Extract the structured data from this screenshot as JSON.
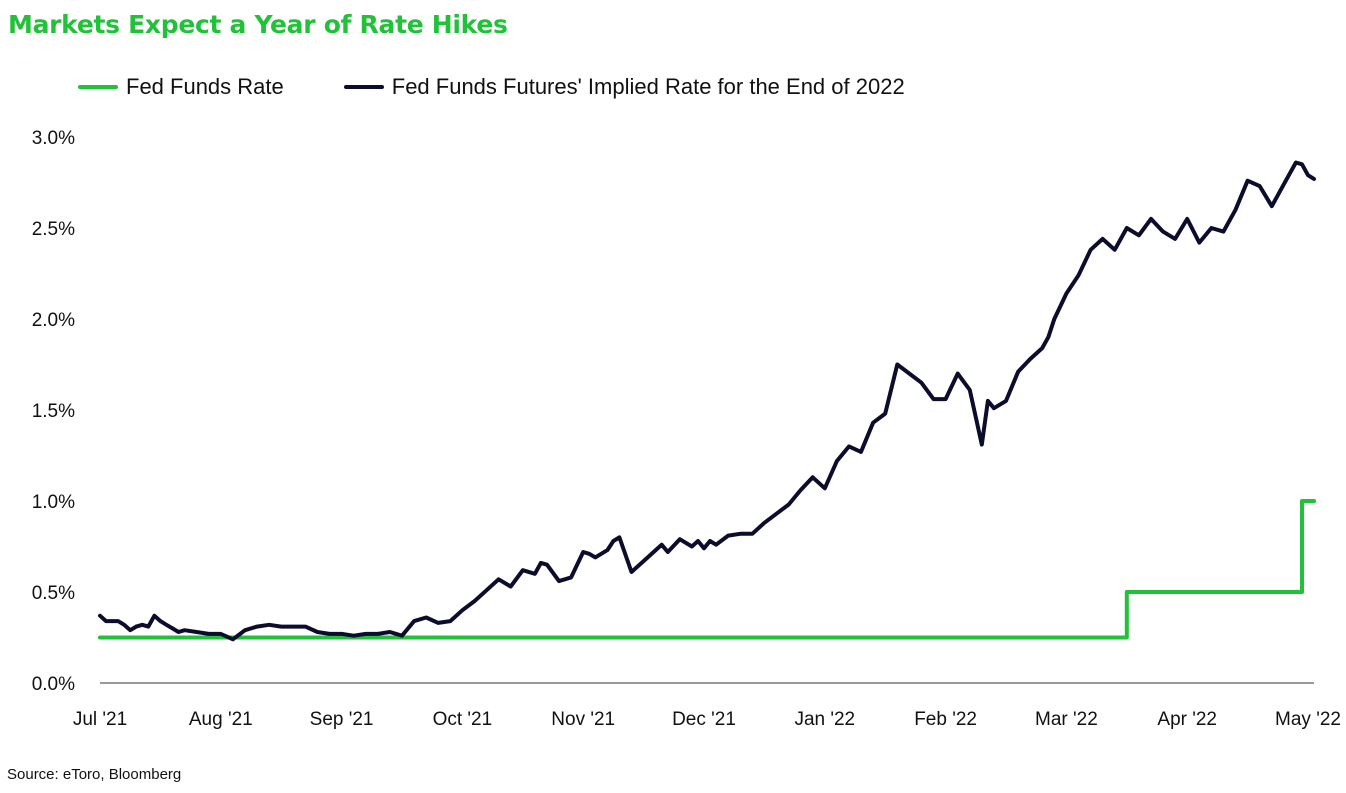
{
  "title": "Markets Expect a Year of Rate Hikes",
  "source": "Source: eToro, Bloomberg",
  "colors": {
    "title": "#22c13a",
    "fed_funds": "#22c13a",
    "futures": "#0c0c2c",
    "axis": "#333333"
  },
  "chart_data": {
    "type": "line",
    "title": "Markets Expect a Year of Rate Hikes",
    "xlabel": "",
    "ylabel": "",
    "ylim": [
      0,
      3.0
    ],
    "xlim": [
      0,
      10.15
    ],
    "x_unit": "months since Jul 1 2021",
    "grid": false,
    "legend_position": "top",
    "y_ticks": [
      "0.0%",
      "0.5%",
      "1.0%",
      "1.5%",
      "2.0%",
      "2.5%",
      "3.0%"
    ],
    "y_tick_values": [
      0,
      0.5,
      1.0,
      1.5,
      2.0,
      2.5,
      3.0
    ],
    "x_ticks": [
      "Jul '21",
      "Aug '21",
      "Sep '21",
      "Oct '21",
      "Nov '21",
      "Dec '21",
      "Jan '22",
      "Feb '22",
      "Mar '22",
      "Apr '22",
      "May '22"
    ],
    "x_tick_values": [
      0,
      1,
      2,
      3,
      4,
      5,
      6,
      7,
      8,
      9,
      10
    ],
    "series": [
      {
        "name": "Fed Funds Rate",
        "color": "#22c13a",
        "x": [
          0,
          8.5,
          8.5,
          9.95,
          9.95,
          10.05
        ],
        "values": [
          0.25,
          0.25,
          0.5,
          0.5,
          1.0,
          1.0
        ]
      },
      {
        "name": "Fed Funds Futures' Implied Rate for the End of 2022",
        "color": "#0c0c2c",
        "x": [
          0,
          0.05,
          0.15,
          0.2,
          0.25,
          0.3,
          0.35,
          0.4,
          0.45,
          0.5,
          0.55,
          0.6,
          0.65,
          0.7,
          0.8,
          0.9,
          1.0,
          1.1,
          1.2,
          1.3,
          1.4,
          1.5,
          1.6,
          1.7,
          1.8,
          1.9,
          2.0,
          2.1,
          2.2,
          2.3,
          2.4,
          2.5,
          2.6,
          2.7,
          2.8,
          2.9,
          3.0,
          3.1,
          3.2,
          3.3,
          3.4,
          3.5,
          3.6,
          3.65,
          3.7,
          3.8,
          3.9,
          4.0,
          4.05,
          4.1,
          4.2,
          4.25,
          4.3,
          4.4,
          4.5,
          4.6,
          4.65,
          4.7,
          4.8,
          4.9,
          4.95,
          5.0,
          5.05,
          5.1,
          5.2,
          5.3,
          5.4,
          5.5,
          5.6,
          5.7,
          5.8,
          5.9,
          6.0,
          6.1,
          6.2,
          6.3,
          6.4,
          6.5,
          6.6,
          6.7,
          6.8,
          6.9,
          7.0,
          7.1,
          7.2,
          7.3,
          7.35,
          7.4,
          7.5,
          7.6,
          7.7,
          7.8,
          7.85,
          7.9,
          8.0,
          8.1,
          8.2,
          8.3,
          8.4,
          8.5,
          8.6,
          8.7,
          8.8,
          8.9,
          9.0,
          9.1,
          9.2,
          9.3,
          9.4,
          9.5,
          9.6,
          9.7,
          9.8,
          9.9,
          9.95,
          10.0,
          10.05
        ],
        "values": [
          0.37,
          0.34,
          0.34,
          0.32,
          0.29,
          0.31,
          0.32,
          0.31,
          0.37,
          0.34,
          0.32,
          0.3,
          0.28,
          0.29,
          0.28,
          0.27,
          0.27,
          0.24,
          0.29,
          0.31,
          0.32,
          0.31,
          0.31,
          0.31,
          0.28,
          0.27,
          0.27,
          0.26,
          0.27,
          0.27,
          0.28,
          0.26,
          0.34,
          0.36,
          0.33,
          0.34,
          0.4,
          0.45,
          0.51,
          0.57,
          0.53,
          0.62,
          0.6,
          0.66,
          0.65,
          0.56,
          0.58,
          0.72,
          0.71,
          0.69,
          0.73,
          0.78,
          0.8,
          0.61,
          0.67,
          0.73,
          0.76,
          0.72,
          0.79,
          0.75,
          0.78,
          0.74,
          0.78,
          0.76,
          0.81,
          0.82,
          0.82,
          0.88,
          0.93,
          0.98,
          1.06,
          1.13,
          1.07,
          1.22,
          1.3,
          1.27,
          1.43,
          1.48,
          1.75,
          1.7,
          1.65,
          1.56,
          1.56,
          1.7,
          1.61,
          1.31,
          1.55,
          1.51,
          1.55,
          1.71,
          1.78,
          1.84,
          1.9,
          2.0,
          2.14,
          2.24,
          2.38,
          2.44,
          2.38,
          2.5,
          2.46,
          2.55,
          2.48,
          2.44,
          2.55,
          2.42,
          2.5,
          2.48,
          2.6,
          2.76,
          2.73,
          2.62,
          2.74,
          2.86,
          2.85,
          2.79,
          2.77
        ]
      }
    ]
  }
}
